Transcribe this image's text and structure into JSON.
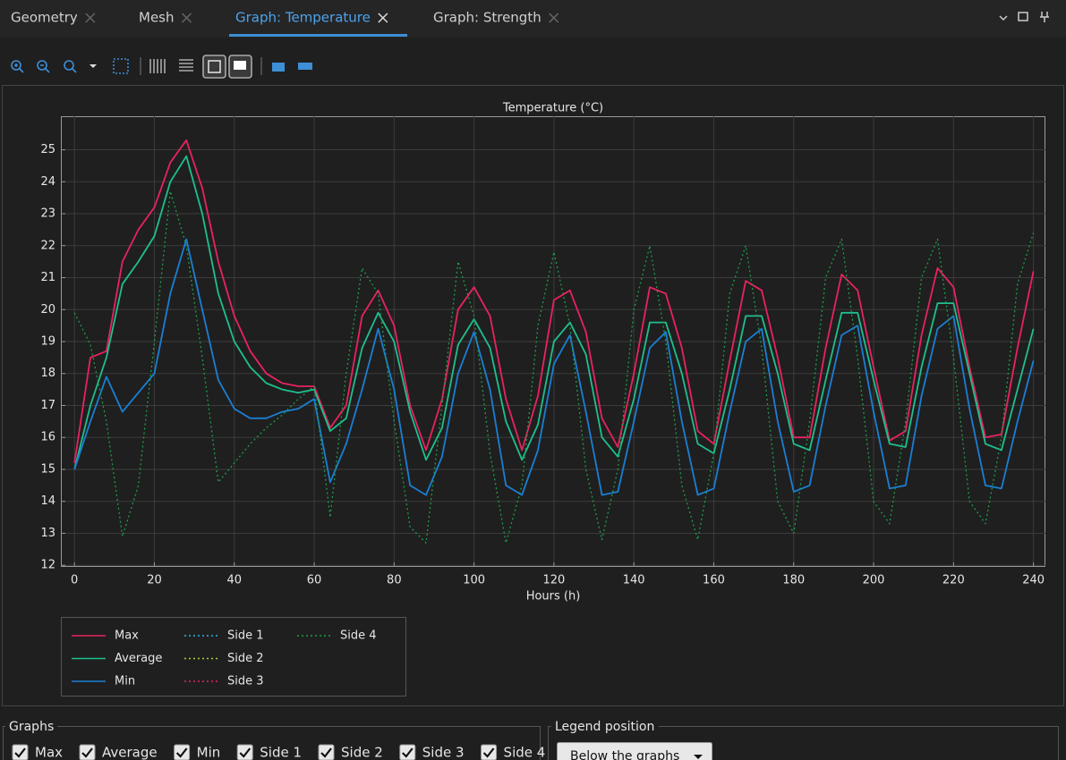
{
  "tabs": [
    "Geometry",
    "Mesh",
    "Graph: Temperature",
    "Graph: Strength"
  ],
  "chart_data": {
    "type": "line",
    "title": "Temperature (°C)",
    "x_label": "Hours (h)",
    "x": [
      0,
      4,
      8,
      12,
      16,
      20,
      24,
      28,
      32,
      36,
      40,
      44,
      48,
      52,
      56,
      60,
      64,
      68,
      72,
      76,
      80,
      84,
      88,
      92,
      96,
      100,
      104,
      108,
      112,
      116,
      120,
      124,
      128,
      132,
      136,
      140,
      144,
      148,
      152,
      156,
      160,
      164,
      168,
      172,
      176,
      180,
      184,
      188,
      192,
      196,
      200,
      204,
      208,
      212,
      216,
      220,
      224,
      228,
      232,
      236,
      240
    ],
    "series": [
      {
        "name": "Max",
        "color": "#e8235f",
        "style": "solid",
        "values": [
          15.2,
          18.5,
          18.7,
          21.5,
          22.5,
          23.2,
          24.6,
          25.3,
          23.8,
          21.5,
          19.8,
          18.7,
          18.0,
          17.7,
          17.6,
          17.6,
          16.3,
          17.0,
          19.8,
          20.6,
          19.5,
          17.0,
          15.6,
          17.2,
          20.0,
          20.7,
          19.8,
          17.2,
          15.6,
          17.3,
          20.3,
          20.6,
          19.3,
          16.6,
          15.7,
          18.0,
          20.7,
          20.5,
          18.8,
          16.2,
          15.8,
          18.4,
          20.9,
          20.6,
          18.5,
          16.0,
          16.0,
          18.8,
          21.1,
          20.6,
          18.2,
          15.9,
          16.2,
          19.2,
          21.3,
          20.7,
          18.2,
          16.0,
          16.1,
          18.8,
          21.2
        ]
      },
      {
        "name": "Average",
        "color": "#1fbf8f",
        "style": "solid",
        "values": [
          15.0,
          17.0,
          18.5,
          20.8,
          21.5,
          22.3,
          24.0,
          24.8,
          23.0,
          20.5,
          19.0,
          18.2,
          17.7,
          17.5,
          17.4,
          17.5,
          16.2,
          16.6,
          18.8,
          19.9,
          19.0,
          16.8,
          15.3,
          16.3,
          18.9,
          19.7,
          18.8,
          16.5,
          15.3,
          16.4,
          19.0,
          19.6,
          18.6,
          16.0,
          15.4,
          17.2,
          19.6,
          19.6,
          18.0,
          15.8,
          15.5,
          17.5,
          19.8,
          19.8,
          18.0,
          15.8,
          15.6,
          17.8,
          19.9,
          19.9,
          17.8,
          15.8,
          15.7,
          18.2,
          20.2,
          20.2,
          18.0,
          15.8,
          15.6,
          17.5,
          19.4
        ]
      },
      {
        "name": "Min",
        "color": "#1a7fd4",
        "style": "solid",
        "values": [
          15.0,
          16.5,
          17.9,
          16.8,
          17.4,
          18.0,
          20.5,
          22.2,
          20.0,
          17.8,
          16.9,
          16.6,
          16.6,
          16.8,
          16.9,
          17.2,
          14.6,
          15.8,
          17.5,
          19.4,
          17.5,
          14.5,
          14.2,
          15.4,
          18.0,
          19.3,
          17.5,
          14.5,
          14.2,
          15.6,
          18.3,
          19.2,
          16.8,
          14.2,
          14.3,
          16.5,
          18.8,
          19.3,
          16.5,
          14.2,
          14.4,
          16.8,
          19.0,
          19.4,
          16.5,
          14.3,
          14.5,
          17.0,
          19.2,
          19.5,
          16.8,
          14.4,
          14.5,
          17.3,
          19.4,
          19.8,
          16.9,
          14.5,
          14.4,
          16.5,
          18.4
        ]
      },
      {
        "name": "Side 1",
        "color": "#2ab3e6",
        "style": "dotted",
        "values": [
          null,
          null,
          null,
          null,
          null,
          null,
          null,
          null,
          null,
          null,
          null,
          null,
          null,
          null,
          null,
          null,
          null,
          null,
          null,
          null,
          null,
          null,
          null,
          null,
          null,
          null,
          null,
          null,
          null,
          null,
          null,
          null,
          null,
          null,
          null,
          null,
          null,
          null,
          null,
          null,
          null,
          null,
          null,
          null,
          null,
          null,
          null,
          null,
          null,
          null,
          null,
          null,
          null,
          null,
          null,
          null,
          null,
          null,
          null,
          null,
          null
        ]
      },
      {
        "name": "Side 2",
        "color": "#a6d13a",
        "style": "dotted",
        "values": [
          null,
          null,
          null,
          null,
          null,
          null,
          null,
          null,
          null,
          null,
          null,
          null,
          null,
          null,
          null,
          null,
          null,
          null,
          null,
          null,
          null,
          null,
          null,
          null,
          null,
          null,
          null,
          null,
          null,
          null,
          null,
          null,
          null,
          null,
          null,
          null,
          null,
          null,
          null,
          null,
          null,
          null,
          null,
          null,
          null,
          null,
          null,
          null,
          null,
          null,
          null,
          null,
          null,
          null,
          null,
          null,
          null,
          null,
          null,
          null,
          null
        ]
      },
      {
        "name": "Side 3",
        "color": "#e8235f",
        "style": "dotted",
        "values": [
          null,
          null,
          null,
          null,
          null,
          null,
          null,
          null,
          null,
          null,
          null,
          null,
          null,
          null,
          null,
          null,
          null,
          null,
          null,
          null,
          null,
          null,
          null,
          null,
          null,
          null,
          null,
          null,
          null,
          null,
          null,
          null,
          null,
          null,
          null,
          null,
          null,
          null,
          null,
          null,
          null,
          null,
          null,
          null,
          null,
          null,
          null,
          null,
          null,
          null,
          null,
          null,
          null,
          null,
          null,
          null,
          null,
          null,
          null,
          null,
          null
        ]
      },
      {
        "name": "Side 4",
        "color": "#1e9e4a",
        "style": "dotted",
        "values": [
          19.9,
          18.9,
          16.5,
          12.9,
          14.5,
          19.0,
          23.7,
          22.0,
          18.5,
          14.6,
          15.2,
          15.8,
          16.3,
          16.7,
          17.2,
          17.6,
          13.5,
          18.0,
          21.3,
          20.5,
          16.5,
          13.2,
          12.7,
          17.0,
          21.5,
          19.8,
          15.5,
          12.7,
          14.5,
          19.5,
          21.8,
          19.5,
          15.0,
          12.8,
          15.0,
          20.0,
          22.0,
          19.0,
          14.5,
          12.8,
          15.5,
          20.5,
          22.0,
          18.8,
          14.0,
          13.0,
          16.5,
          21.0,
          22.2,
          18.5,
          14.0,
          13.3,
          16.5,
          21.0,
          22.2,
          18.5,
          14.0,
          13.3,
          16.0,
          20.8,
          22.4
        ]
      }
    ],
    "xlim": [
      -3.4,
      243
    ],
    "ylim": [
      11.95,
      26.05
    ],
    "xticks": [
      0,
      20,
      40,
      60,
      80,
      100,
      120,
      140,
      160,
      180,
      200,
      220,
      240
    ],
    "yticks": [
      12,
      13,
      14,
      15,
      16,
      17,
      18,
      19,
      20,
      21,
      22,
      23,
      24,
      25
    ],
    "grid": true,
    "legend": "below"
  },
  "graphs_panel": {
    "title": "Graphs",
    "checkboxes": [
      "Max",
      "Average",
      "Min",
      "Side 1",
      "Side 2",
      "Side 3",
      "Side 4"
    ]
  },
  "legend_position": {
    "title": "Legend position",
    "selected": "Below the graphs"
  }
}
